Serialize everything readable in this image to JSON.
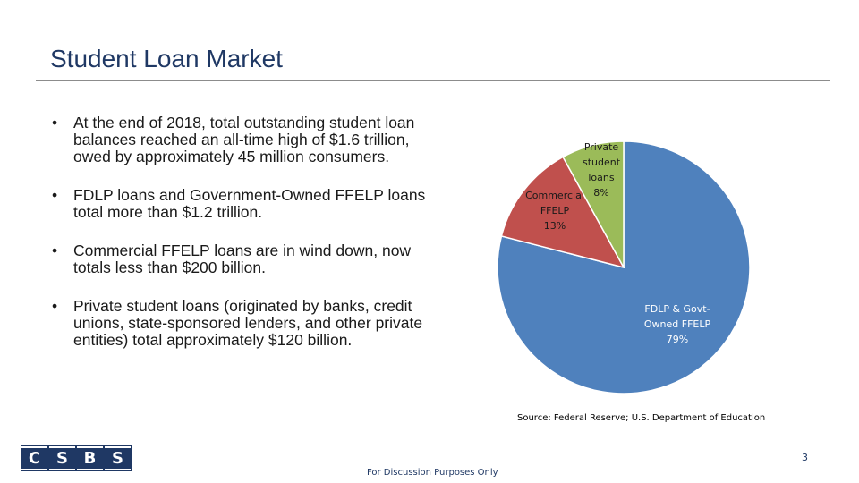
{
  "slide": {
    "title": "Student Loan Market",
    "bullets": [
      "At the end of 2018, total outstanding student loan balances reached an all-time high of $1.6 trillion, owed by approximately 45 million consumers.",
      "FDLP loans and Government-Owned FFELP loans total more than $1.2 trillion.",
      "Commercial FFELP loans are in wind down, now totals less than $200 billion.",
      "Private student loans (originated by banks, credit unions, state-sponsored lenders, and other private entities) total approximately $120 billion."
    ],
    "source": "Source: Federal Reserve; U.S. Department of Education",
    "page_number": "3",
    "footer": "For Discussion Purposes Only",
    "logo_letters": [
      "C",
      "S",
      "B",
      "S"
    ]
  },
  "chart_data": {
    "type": "pie",
    "title": "",
    "slices": [
      {
        "label": "FDLP & Govt-Owned FFELP",
        "label_lines": [
          "FDLP & Govt-",
          "Owned FFELP"
        ],
        "percent_label": "79%",
        "value": 79,
        "color": "#4f81bd"
      },
      {
        "label": "Commercial FFELP",
        "label_lines": [
          "Commercial",
          "FFELP"
        ],
        "percent_label": "13%",
        "value": 13,
        "color": "#c0504d"
      },
      {
        "label": "Private student loans",
        "label_lines": [
          "Private",
          "student",
          "loans"
        ],
        "percent_label": "8%",
        "value": 8,
        "color": "#9bbb59"
      }
    ]
  }
}
